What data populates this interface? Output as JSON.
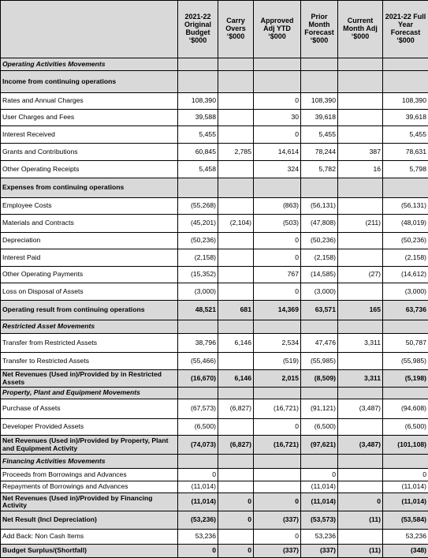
{
  "table": {
    "header": [
      "2021-22 Original Budget ‘$000",
      "Carry Overs ‘$000",
      "Approved Adj YTD ‘$000",
      "Prior Month Forecast ‘$000",
      "Current Month Adj ‘$000",
      "2021-22 Full Year Forecast ‘$000"
    ],
    "rows": [
      [
        "Operating Activities Movements",
        null,
        null,
        null,
        null,
        null,
        null
      ],
      [
        "Income from continuing operations",
        null,
        null,
        null,
        null,
        null,
        null
      ],
      [
        "Rates and Annual Charges",
        "108,390",
        null,
        "0",
        "108,390",
        null,
        "108,390"
      ],
      [
        "User Charges and Fees",
        "39,588",
        null,
        "30",
        "39,618",
        null,
        "39,618"
      ],
      [
        "Interest Received",
        "5,455",
        null,
        "0",
        "5,455",
        null,
        "5,455"
      ],
      [
        "Grants and Contributions",
        "60,845",
        "2,785",
        "14,614",
        "78,244",
        "387",
        "78,631"
      ],
      [
        "Other Operating Receipts",
        "5,458",
        null,
        "324",
        "5,782",
        "16",
        "5,798"
      ],
      [
        "Expenses from continuing operations",
        null,
        null,
        null,
        null,
        null,
        null
      ],
      [
        "Employee Costs",
        "(55,268)",
        null,
        "(863)",
        "(56,131)",
        null,
        "(56,131)"
      ],
      [
        "Materials and Contracts",
        "(45,201)",
        "(2,104)",
        "(503)",
        "(47,808)",
        "(211)",
        "(48,019)"
      ],
      [
        "Depreciation",
        "(50,236)",
        null,
        "0",
        "(50,236)",
        null,
        "(50,236)"
      ],
      [
        "Interest Paid",
        "(2,158)",
        null,
        "0",
        "(2,158)",
        null,
        "(2,158)"
      ],
      [
        "Other Operating Payments",
        "(15,352)",
        null,
        "767",
        "(14,585)",
        "(27)",
        "(14,612)"
      ],
      [
        "Loss on Disposal of Assets",
        "(3,000)",
        null,
        "0",
        "(3,000)",
        null,
        "(3,000)"
      ],
      [
        "Operating result from continuing operations",
        "48,521",
        "681",
        "14,369",
        "63,571",
        "165",
        "63,736"
      ],
      [
        "Restricted Asset Movements",
        null,
        null,
        null,
        null,
        null,
        null
      ],
      [
        "Transfer from Restricted Assets",
        "38,796",
        "6,146",
        "2,534",
        "47,476",
        "3,311",
        "50,787"
      ],
      [
        "Transfer to Restricted Assets",
        "(55,466)",
        null,
        "(519)",
        "(55,985)",
        null,
        "(55,985)"
      ],
      [
        "Net Revenues (Used in)/Provided by in Restricted Assets",
        "(16,670)",
        "6,146",
        "2,015",
        "(8,509)",
        "3,311",
        "(5,198)"
      ],
      [
        "Property, Plant and Equipment Movements",
        null,
        null,
        null,
        null,
        null,
        null
      ],
      [
        "Purchase of Assets",
        "(67,573)",
        "(6,827)",
        "(16,721)",
        "(91,121)",
        "(3,487)",
        "(94,608)"
      ],
      [
        "Developer Provided Assets",
        "(6,500)",
        null,
        "0",
        "(6,500)",
        null,
        "(6,500)"
      ],
      [
        "Net Revenues (Used in)/Provided by Property, Plant and Equipment Activity",
        "(74,073)",
        "(6,827)",
        "(16,721)",
        "(97,621)",
        "(3,487)",
        "(101,108)"
      ],
      [
        "Financing Activities Movements",
        null,
        null,
        null,
        null,
        null,
        null
      ],
      [
        "Proceeds from Borrowings and Advances",
        "0",
        null,
        null,
        "0",
        null,
        "0"
      ],
      [
        "Repayments of Borrowings and Advances",
        "(11,014)",
        null,
        null,
        "(11,014)",
        null,
        "(11,014)"
      ],
      [
        "Net Revenues (Used in)/Provided by Financing Activity",
        "(11,014)",
        "0",
        "0",
        "(11,014)",
        "0",
        "(11,014)"
      ],
      [
        "Net Result (Incl Depreciation)",
        "(53,236)",
        "0",
        "(337)",
        "(53,573)",
        "(11)",
        "(53,584)"
      ],
      [
        "Add Back: Non Cash Items",
        "53,236",
        null,
        "0",
        "53,236",
        null,
        "53,236"
      ],
      [
        "Budget Surplus/(Shortfall)",
        "0",
        "0",
        "(337)",
        "(337)",
        "(11)",
        "(348)"
      ]
    ]
  }
}
